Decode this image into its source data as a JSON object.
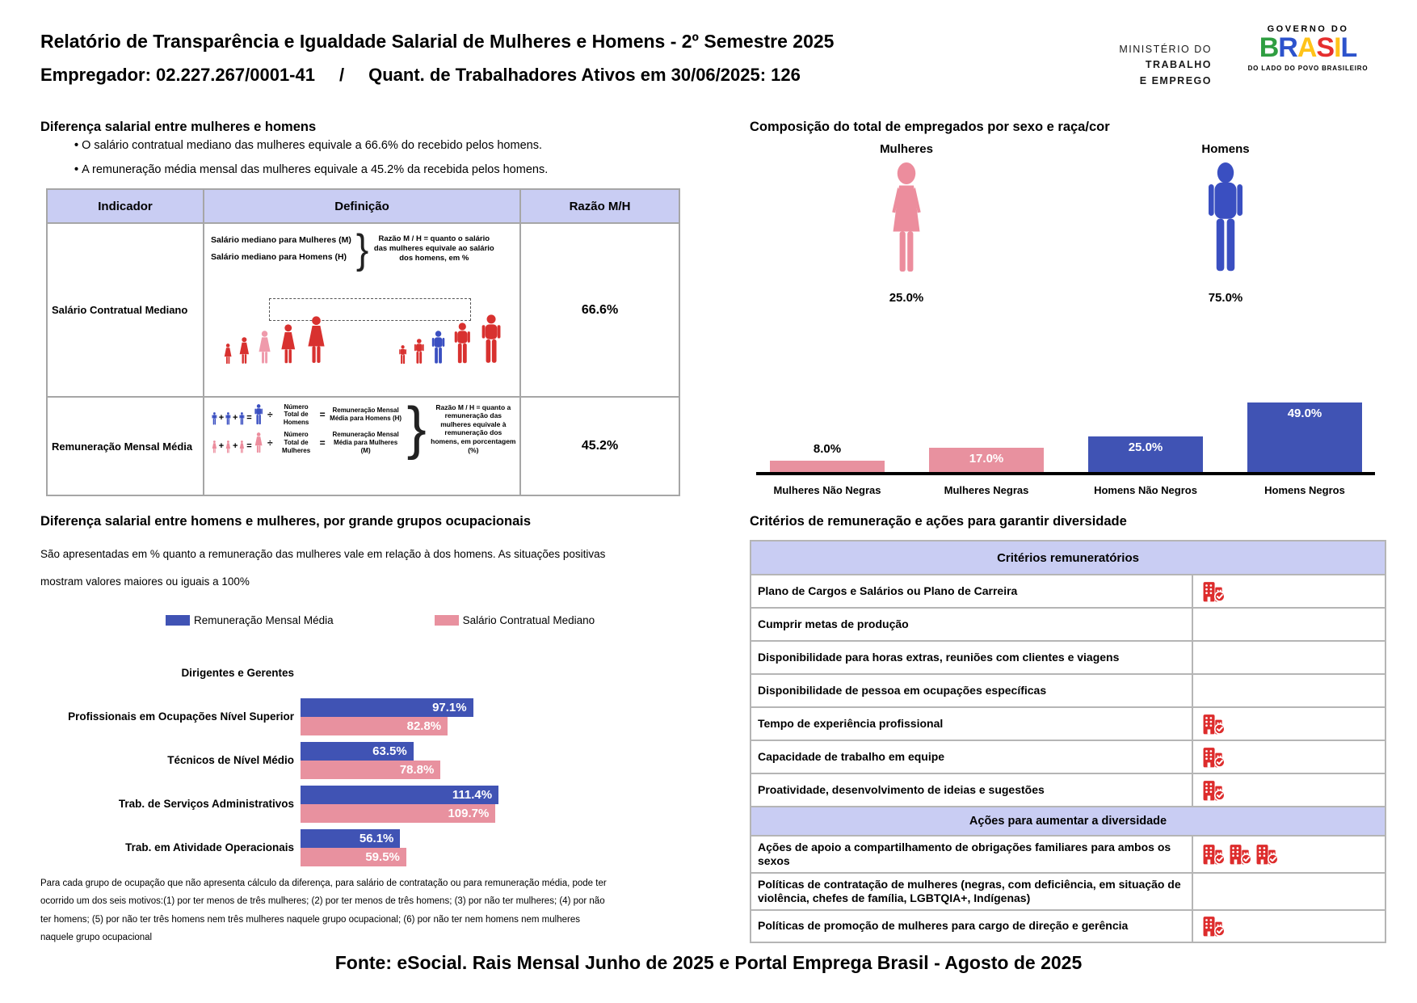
{
  "header": {
    "title": "Relatório de Transparência e Igualdade Salarial de Mulheres e Homens - 2º Semestre 2025",
    "employer": "Empregador: 02.227.267/0001-41",
    "divider": "/",
    "active_workers": "Quant. de Trabalhadores Ativos em 30/06/2025: 126",
    "ministry": {
      "line1": "MINISTÉRIO DO",
      "line2": "TRABALHO",
      "line3": "E EMPREGO"
    },
    "gov_logo": {
      "top": "GOVERNO DO",
      "letters": [
        "B",
        "R",
        "A",
        "S",
        "I",
        "L"
      ],
      "tagline": "DO LADO DO POVO BRASILEIRO"
    }
  },
  "salary_gap": {
    "title": "Diferença salarial entre mulheres e homens",
    "bullets": [
      "O salário contratual mediano das mulheres equivale a 66.6% do recebido pelos homens.",
      "A remuneração média mensal das mulheres equivale a 45.2% da recebida pelos homens."
    ],
    "table": {
      "headers": [
        "Indicador",
        "Definição",
        "Razão M/H"
      ],
      "rows": [
        {
          "indicator": "Salário Contratual Mediano",
          "ratio": "66.6%",
          "definition": {
            "line_women": "Salário mediano para Mulheres (M)",
            "line_men": "Salário mediano para Homens (H)",
            "note": "Razão M / H = quanto o salário das mulheres equivale ao salário dos homens, em %"
          }
        },
        {
          "indicator": "Remuneração Mensal Média",
          "ratio": "45.2%",
          "definition": {
            "symbols": {
              "divide": "÷",
              "equals": "="
            },
            "men_formula": {
              "divide": "Número Total de Homens",
              "result": "Remuneração Mensal Média para Homens (H)"
            },
            "women_formula": {
              "divide": "Número Total de Mulheres",
              "result": "Remuneração Mensal Média para Mulheres (M)"
            },
            "note": "Razão M / H = quanto a remuneração das mulheres equivale à remuneração dos homens, em porcentagem (%)"
          }
        }
      ]
    }
  },
  "composition": {
    "title": "Composição do total de empregados por sexo e raça/cor",
    "women_label": "Mulheres",
    "men_label": "Homens",
    "women_pct": "25.0%",
    "men_pct": "75.0%"
  },
  "occupational": {
    "title": "Diferença salarial entre homens e mulheres, por grande grupos ocupacionais",
    "subtitle_line1": "São apresentadas em % quanto a remuneração das mulheres vale em relação à dos homens. As situações positivas",
    "subtitle_line2": "mostram valores maiores ou iguais a 100%",
    "footnote": "Para cada grupo de ocupação que não apresenta cálculo da diferença, para salário de contratação ou para remuneração média, pode ter ocorrido um dos seis motivos:(1) por ter menos de três mulheres; (2) por ter menos de três homens; (3) por não ter mulheres; (4) por não ter homens; (5) por não ter três homens nem três mulheres naquele grupo ocupacional; (6) por não ter nem homens nem mulheres naquele grupo ocupacional"
  },
  "criteria": {
    "title": "Critérios de remuneração e ações para garantir diversidade",
    "section1_header": "Critérios remuneratórios",
    "section1_rows": [
      {
        "label": "Plano de Cargos e Salários ou Plano de Carreira",
        "icons": 1
      },
      {
        "label": "Cumprir metas de produção",
        "icons": 0
      },
      {
        "label": "Disponibilidade para horas extras, reuniões com clientes e viagens",
        "icons": 0
      },
      {
        "label": "Disponibilidade de pessoa em ocupações específicas",
        "icons": 0
      },
      {
        "label": "Tempo de experiência profissional",
        "icons": 1
      },
      {
        "label": "Capacidade de trabalho em equipe",
        "icons": 1
      },
      {
        "label": "Proatividade, desenvolvimento de ideias e sugestões",
        "icons": 1
      }
    ],
    "section2_header": "Ações para aumentar a diversidade",
    "section2_rows": [
      {
        "label": "Ações de apoio a compartilhamento de obrigações familiares para ambos os sexos",
        "icons": 3
      },
      {
        "label": "Políticas de contratação de mulheres (negras, com deficiência, em situação de violência, chefes de família, LGBTQIA+, Indígenas)",
        "icons": 0
      },
      {
        "label": "Políticas de promoção de mulheres para cargo de direção e gerência",
        "icons": 1
      }
    ]
  },
  "footer": {
    "source": "Fonte: eSocial. Rais Mensal Junho de 2025 e Portal Emprega Brasil - Agosto de 2025"
  },
  "colors": {
    "lavender_header": "#c9cdf3",
    "pink": "#e8919f",
    "blue": "#4053b4",
    "icon_red": "#dd2c2c",
    "figure_red": "#d8312f"
  },
  "chart_data": [
    {
      "type": "bar",
      "title": "Composição do total de empregados por sexo e raça/cor",
      "categories": [
        "Mulheres Não Negras",
        "Mulheres Negras",
        "Homens Não Negros",
        "Homens Negros"
      ],
      "values": [
        8.0,
        17.0,
        25.0,
        49.0
      ],
      "labels": [
        "8.0%",
        "17.0%",
        "25.0%",
        "49.0%"
      ],
      "colors": [
        "#e8919f",
        "#e8919f",
        "#4053b4",
        "#4053b4"
      ],
      "ylim": [
        0,
        50
      ],
      "grid": false
    },
    {
      "type": "bar",
      "orientation": "horizontal",
      "title": "Diferença salarial entre homens e mulheres, por grande grupos ocupacionais",
      "categories": [
        "Dirigentes e Gerentes",
        "Profissionais em Ocupações Nível Superior",
        "Técnicos de Nível Médio",
        "Trab. de Serviços Administrativos",
        "Trab. em Atividade Operacionais"
      ],
      "series": [
        {
          "name": "Remuneração Mensal Média",
          "color": "#4053b4",
          "values": [
            null,
            97.1,
            63.5,
            111.4,
            56.1
          ],
          "labels": [
            "",
            "97.1%",
            "63.5%",
            "111.4%",
            "56.1%"
          ]
        },
        {
          "name": "Salário Contratual Mediano",
          "color": "#e8919f",
          "values": [
            null,
            82.8,
            78.8,
            109.7,
            59.5
          ],
          "labels": [
            "",
            "82.8%",
            "78.8%",
            "109.7%",
            "59.5%"
          ]
        }
      ],
      "xlim": [
        0,
        115
      ],
      "grid": false
    }
  ]
}
